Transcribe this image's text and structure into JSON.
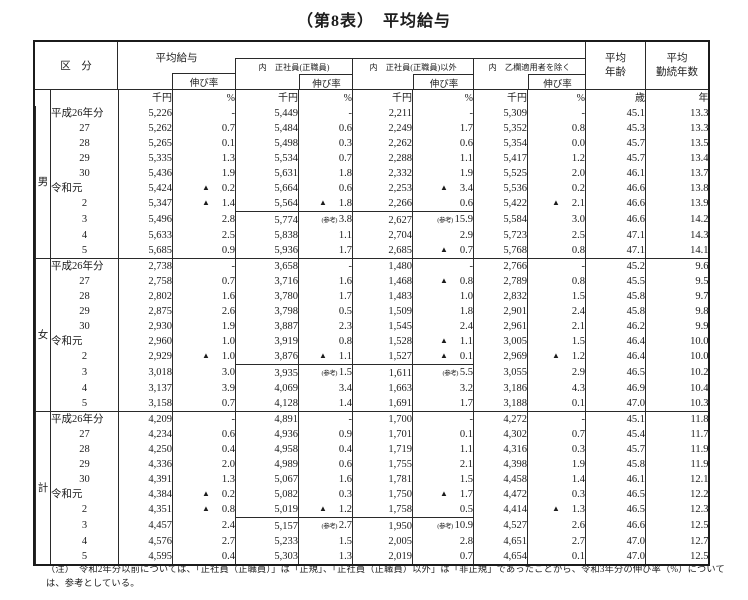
{
  "title": "（第8表）　平均給与",
  "header": {
    "kubun": "区　分",
    "avg_salary": "平均給与",
    "growth_rate": "伸び率",
    "regular": "内　正社員(正職員)",
    "non_regular": "内　正社員(正職員)以外",
    "excl_otsu": "内　乙欄適用者を除く",
    "avg_age_1": "平均",
    "avg_age_2": "年齢",
    "avg_service_1": "平均",
    "avg_service_2": "勤続年数"
  },
  "units": {
    "thousand_yen": "千円",
    "percent": "%",
    "age": "歳",
    "years": "年"
  },
  "sections": [
    {
      "label": "男",
      "rows": [
        [
          "平成26年分",
          "5,226",
          "-",
          "5,449",
          "-",
          "2,211",
          "-",
          "5,309",
          "-",
          "45.1",
          "13.3"
        ],
        [
          "27",
          "5,262",
          "0.7",
          "5,484",
          "0.6",
          "2,249",
          "1.7",
          "5,352",
          "0.8",
          "45.3",
          "13.3"
        ],
        [
          "28",
          "5,265",
          "0.1",
          "5,498",
          "0.3",
          "2,262",
          "0.6",
          "5,354",
          "0.0",
          "45.7",
          "13.5"
        ],
        [
          "29",
          "5,335",
          "1.3",
          "5,534",
          "0.7",
          "2,288",
          "1.1",
          "5,417",
          "1.2",
          "45.7",
          "13.4"
        ],
        [
          "30",
          "5,436",
          "1.9",
          "5,631",
          "1.8",
          "2,332",
          "1.9",
          "5,525",
          "2.0",
          "46.1",
          "13.7"
        ],
        [
          "令和元",
          "5,424",
          "▲0.2",
          "5,664",
          "0.6",
          "2,253",
          "▲3.4",
          "5,536",
          "0.2",
          "46.6",
          "13.8"
        ],
        [
          "2",
          "5,347",
          "▲1.4",
          "5,564",
          "▲1.8",
          "2,266",
          "0.6",
          "5,422",
          "▲2.1",
          "46.6",
          "13.9"
        ],
        [
          "3",
          "5,496",
          "2.8",
          "5,774",
          "(参考)3.8",
          "2,627",
          "(参考)15.9",
          "5,584",
          "3.0",
          "46.6",
          "14.2"
        ],
        [
          "4",
          "5,633",
          "2.5",
          "5,838",
          "1.1",
          "2,704",
          "2.9",
          "5,723",
          "2.5",
          "47.1",
          "14.3"
        ],
        [
          "5",
          "5,685",
          "0.9",
          "5,936",
          "1.7",
          "2,685",
          "▲0.7",
          "5,768",
          "0.8",
          "47.1",
          "14.1"
        ]
      ]
    },
    {
      "label": "女",
      "rows": [
        [
          "平成26年分",
          "2,738",
          "-",
          "3,658",
          "-",
          "1,480",
          "-",
          "2,766",
          "-",
          "45.2",
          "9.6"
        ],
        [
          "27",
          "2,758",
          "0.7",
          "3,716",
          "1.6",
          "1,468",
          "▲0.8",
          "2,789",
          "0.8",
          "45.5",
          "9.5"
        ],
        [
          "28",
          "2,802",
          "1.6",
          "3,780",
          "1.7",
          "1,483",
          "1.0",
          "2,832",
          "1.5",
          "45.8",
          "9.7"
        ],
        [
          "29",
          "2,875",
          "2.6",
          "3,798",
          "0.5",
          "1,509",
          "1.8",
          "2,901",
          "2.4",
          "45.8",
          "9.8"
        ],
        [
          "30",
          "2,930",
          "1.9",
          "3,887",
          "2.3",
          "1,545",
          "2.4",
          "2,961",
          "2.1",
          "46.2",
          "9.9"
        ],
        [
          "令和元",
          "2,960",
          "1.0",
          "3,919",
          "0.8",
          "1,528",
          "▲1.1",
          "3,005",
          "1.5",
          "46.4",
          "10.0"
        ],
        [
          "2",
          "2,929",
          "▲1.0",
          "3,876",
          "▲1.1",
          "1,527",
          "▲0.1",
          "2,969",
          "▲1.2",
          "46.4",
          "10.0"
        ],
        [
          "3",
          "3,018",
          "3.0",
          "3,935",
          "(参考)1.5",
          "1,611",
          "(参考)5.5",
          "3,055",
          "2.9",
          "46.5",
          "10.2"
        ],
        [
          "4",
          "3,137",
          "3.9",
          "4,069",
          "3.4",
          "1,663",
          "3.2",
          "3,186",
          "4.3",
          "46.9",
          "10.4"
        ],
        [
          "5",
          "3,158",
          "0.7",
          "4,128",
          "1.4",
          "1,691",
          "1.7",
          "3,188",
          "0.1",
          "47.0",
          "10.3"
        ]
      ]
    },
    {
      "label": "計",
      "rows": [
        [
          "平成26年分",
          "4,209",
          "-",
          "4,891",
          "-",
          "1,700",
          "-",
          "4,272",
          "-",
          "45.1",
          "11.8"
        ],
        [
          "27",
          "4,234",
          "0.6",
          "4,936",
          "0.9",
          "1,701",
          "0.1",
          "4,302",
          "0.7",
          "45.4",
          "11.7"
        ],
        [
          "28",
          "4,250",
          "0.4",
          "4,958",
          "0.4",
          "1,719",
          "1.1",
          "4,316",
          "0.3",
          "45.7",
          "11.9"
        ],
        [
          "29",
          "4,336",
          "2.0",
          "4,989",
          "0.6",
          "1,755",
          "2.1",
          "4,398",
          "1.9",
          "45.8",
          "11.9"
        ],
        [
          "30",
          "4,391",
          "1.3",
          "5,067",
          "1.6",
          "1,781",
          "1.5",
          "4,458",
          "1.4",
          "46.1",
          "12.1"
        ],
        [
          "令和元",
          "4,384",
          "▲0.2",
          "5,082",
          "0.3",
          "1,750",
          "▲1.7",
          "4,472",
          "0.3",
          "46.5",
          "12.2"
        ],
        [
          "2",
          "4,351",
          "▲0.8",
          "5,019",
          "▲1.2",
          "1,758",
          "0.5",
          "4,414",
          "▲1.3",
          "46.5",
          "12.3"
        ],
        [
          "3",
          "4,457",
          "2.4",
          "5,157",
          "(参考)2.7",
          "1,950",
          "(参考)10.9",
          "4,527",
          "2.6",
          "46.6",
          "12.5"
        ],
        [
          "4",
          "4,576",
          "2.7",
          "5,233",
          "1.5",
          "2,005",
          "2.8",
          "4,651",
          "2.7",
          "47.0",
          "12.7"
        ],
        [
          "5",
          "4,595",
          "0.4",
          "5,303",
          "1.3",
          "2,019",
          "0.7",
          "4,654",
          "0.1",
          "47.0",
          "12.5"
        ]
      ]
    }
  ],
  "note": "（注）　令和2年分以前については、「正社員（正職員）」は「正規」、「正社員（正職員）以外」は「非正規」であったことから、令和3年分の伸び率（%）については、参考としている。"
}
